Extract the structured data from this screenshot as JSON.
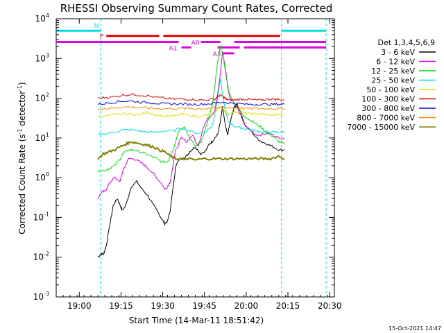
{
  "chart_data": {
    "type": "line",
    "title": "RHESSI Observing Summary Count Rates, Corrected",
    "xlabel": "Start Time (14-Mar-11 18:51:42)",
    "ylabel_main": "Corrected Count Rate (s",
    "ylabel_sup1": "-1",
    "ylabel_mid": " detector",
    "ylabel_sup2": "-1",
    "ylabel_end": ")",
    "yscale": "log",
    "ylim": [
      0.001,
      10000
    ],
    "xlim_minutes": [
      0,
      100
    ],
    "x_ticks": [
      {
        "min": 8.3,
        "label": "19:00"
      },
      {
        "min": 23.3,
        "label": "19:15"
      },
      {
        "min": 38.3,
        "label": "19:30"
      },
      {
        "min": 53.3,
        "label": "19:45"
      },
      {
        "min": 68.3,
        "label": "20:00"
      },
      {
        "min": 83.3,
        "label": "20:15"
      },
      {
        "min": 98.3,
        "label": "20:30"
      }
    ],
    "y_ticks": [
      {
        "exp": -3,
        "base": "10",
        "sup": "-3"
      },
      {
        "exp": -2,
        "base": "10",
        "sup": "-2"
      },
      {
        "exp": -1,
        "base": "10",
        "sup": "-1"
      },
      {
        "exp": 0,
        "base": "10",
        "sup": "0"
      },
      {
        "exp": 1,
        "base": "10",
        "sup": "1"
      },
      {
        "exp": 2,
        "base": "10",
        "sup": "2"
      },
      {
        "exp": 3,
        "base": "10",
        "sup": "3"
      },
      {
        "exp": 4,
        "base": "10",
        "sup": "4"
      }
    ],
    "legend_title": "Det 1,3,4,5,6,9",
    "series": [
      {
        "name": "3 - 6 keV",
        "color": "#000000",
        "x": [
          15,
          16,
          17,
          17.5,
          18,
          19.5,
          20.5,
          22,
          23,
          23.8,
          25,
          27,
          29,
          31,
          33,
          35,
          37,
          38,
          39,
          40,
          41,
          43,
          44.5,
          46,
          47.5,
          48.5,
          50,
          52,
          54,
          55,
          56,
          57,
          58,
          59,
          59.8,
          60.8,
          61.6,
          62.6,
          64,
          65,
          66,
          67,
          68,
          70,
          72,
          74,
          76,
          78,
          80,
          82
        ],
        "y": [
          0.01,
          0.012,
          0.012,
          0.015,
          0.02,
          0.08,
          0.2,
          0.3,
          0.2,
          0.15,
          0.2,
          0.6,
          0.8,
          0.5,
          0.35,
          0.2,
          0.12,
          0.09,
          0.07,
          0.08,
          0.15,
          2,
          3,
          3,
          4,
          5,
          6,
          4,
          5,
          7,
          8,
          10,
          12,
          25,
          60,
          20,
          12,
          25,
          60,
          70,
          50,
          30,
          20,
          15,
          10,
          8,
          7,
          6,
          5,
          5
        ]
      },
      {
        "name": "6 - 12 keV",
        "color": "#dd00dd",
        "x": [
          15,
          16,
          17,
          18,
          19.5,
          21,
          23,
          24,
          26,
          28,
          30,
          32,
          34,
          36,
          38,
          39,
          40,
          41,
          43,
          45,
          47,
          49,
          51,
          53,
          54.5,
          56,
          57,
          58,
          59,
          59.8,
          60.8,
          61.6,
          62.5,
          64,
          65,
          66,
          67,
          68,
          70,
          72,
          74,
          76,
          78,
          80,
          82
        ],
        "y": [
          0.3,
          0.4,
          0.45,
          0.5,
          0.8,
          1.0,
          0.8,
          1.5,
          3.0,
          3.0,
          2.5,
          2.0,
          1.5,
          1.0,
          0.7,
          0.5,
          0.6,
          0.8,
          5,
          10,
          8,
          12,
          6,
          20,
          30,
          40,
          50,
          120,
          400,
          1500,
          600,
          200,
          100,
          80,
          60,
          40,
          30,
          20,
          15,
          12,
          12,
          13,
          12,
          10,
          10
        ]
      },
      {
        "name": "12 - 25 keV",
        "color": "#00dd00",
        "x": [
          15,
          17,
          19,
          21,
          23,
          24,
          26,
          28,
          30,
          32,
          34,
          36,
          38,
          40,
          42,
          44,
          46,
          48,
          50,
          52,
          54,
          56,
          57,
          58,
          59,
          60,
          61,
          62,
          63,
          64,
          65,
          67,
          69,
          71,
          73,
          75,
          77,
          79,
          80,
          82
        ],
        "y": [
          1.5,
          1.5,
          1.7,
          2.0,
          3.0,
          4.0,
          5.0,
          5.0,
          4.5,
          4.0,
          3.5,
          3.0,
          2.5,
          2.5,
          5,
          15,
          20,
          10,
          6,
          8,
          20,
          60,
          200,
          800,
          2000,
          1200,
          400,
          150,
          100,
          80,
          60,
          40,
          30,
          25,
          20,
          15,
          12,
          10,
          8,
          7
        ]
      },
      {
        "name": "25 - 50 keV",
        "color": "#00dddd",
        "x": [
          15,
          18,
          21,
          24,
          27,
          30,
          33,
          36,
          39,
          42,
          45,
          48,
          51,
          54,
          56,
          57,
          58,
          59,
          60,
          61,
          62,
          64,
          66,
          68,
          70,
          72,
          74,
          76,
          78,
          80,
          82
        ],
        "y": [
          12,
          13,
          14,
          16,
          16,
          15,
          14,
          14,
          15,
          15,
          18,
          15,
          13,
          15,
          20,
          40,
          100,
          300,
          100,
          40,
          25,
          20,
          18,
          17,
          16,
          15,
          14,
          14,
          14,
          14,
          14
        ]
      },
      {
        "name": "50 - 100 keV",
        "color": "#dddd00",
        "x": [
          15,
          18,
          21,
          24,
          27,
          30,
          33,
          36,
          39,
          42,
          45,
          48,
          51,
          54,
          57,
          58,
          59,
          60,
          61,
          62,
          64,
          66,
          68,
          70,
          72,
          74,
          76,
          78,
          80,
          82
        ],
        "y": [
          35,
          36,
          38,
          40,
          40,
          38,
          45,
          38,
          35,
          35,
          40,
          36,
          35,
          37,
          40,
          55,
          60,
          55,
          45,
          40,
          45,
          45,
          42,
          40,
          40,
          40,
          38,
          38,
          38,
          38
        ]
      },
      {
        "name": "100 - 300 keV",
        "color": "#dd0000",
        "x": [
          15,
          18,
          21,
          24,
          27,
          30,
          33,
          36,
          39,
          42,
          45,
          48,
          51,
          54,
          57,
          58,
          59,
          60,
          61,
          62,
          64,
          66,
          68,
          70,
          72,
          74,
          76,
          78,
          80,
          82
        ],
        "y": [
          100,
          105,
          110,
          120,
          125,
          120,
          115,
          105,
          100,
          95,
          95,
          95,
          90,
          90,
          95,
          110,
          120,
          110,
          95,
          90,
          90,
          95,
          95,
          92,
          90,
          90,
          95,
          95,
          92,
          90
        ]
      },
      {
        "name": "300 - 800 keV",
        "color": "#0000dd",
        "x": [
          15,
          18,
          21,
          24,
          27,
          30,
          33,
          36,
          39,
          42,
          45,
          48,
          51,
          54,
          57,
          60,
          63,
          66,
          69,
          72,
          75,
          78,
          80,
          82
        ],
        "y": [
          70,
          75,
          80,
          85,
          85,
          80,
          78,
          75,
          72,
          72,
          72,
          70,
          70,
          72,
          75,
          80,
          75,
          72,
          70,
          70,
          70,
          70,
          70,
          70
        ]
      },
      {
        "name": "800 - 7000 keV",
        "color": "#ff8800",
        "x": [
          15,
          18,
          21,
          24,
          27,
          30,
          33,
          36,
          39,
          42,
          45,
          48,
          51,
          54,
          57,
          60,
          63,
          66,
          69,
          72,
          75,
          78,
          80,
          82
        ],
        "y": [
          55,
          55,
          57,
          60,
          60,
          58,
          57,
          55,
          55,
          55,
          55,
          55,
          55,
          55,
          57,
          60,
          58,
          56,
          55,
          55,
          55,
          55,
          55,
          55
        ]
      },
      {
        "name": "7000 - 15000 keV",
        "color": "#808000",
        "x": [
          15,
          17,
          19,
          21,
          23,
          25,
          27,
          29,
          31,
          33,
          35,
          37,
          39,
          41,
          43,
          45,
          47,
          50,
          53,
          56,
          59,
          62,
          65,
          68,
          71,
          74,
          77,
          80,
          82
        ],
        "y": [
          3.0,
          4.0,
          4.5,
          5.0,
          6.0,
          7.0,
          8.0,
          7.5,
          7.0,
          6.5,
          6.0,
          5.0,
          4.5,
          3.5,
          3.0,
          3.0,
          3.0,
          2.8,
          3.0,
          3.0,
          3.0,
          3.0,
          3.0,
          3.0,
          3.0,
          3.0,
          3.0,
          3.5,
          3.0
        ]
      }
    ],
    "state_bars": [
      {
        "label": "N",
        "color": "#00dddd",
        "y": 5000,
        "segments": [
          [
            0,
            16
          ],
          [
            81,
            97
          ]
        ]
      },
      {
        "label": "F",
        "color": "#dd0000",
        "y": 3700,
        "segments": [
          [
            18,
            37
          ],
          [
            38.5,
            80.5
          ]
        ]
      },
      {
        "label": "A0",
        "color": "#dd00dd",
        "y": 2600,
        "segments": [
          [
            0,
            44
          ],
          [
            52,
            59
          ],
          [
            64,
            97
          ]
        ]
      },
      {
        "label": "A1",
        "color": "#dd00dd",
        "y": 1900,
        "segments": [
          [
            45,
            48.5
          ],
          [
            58,
            66
          ],
          [
            67.5,
            97
          ]
        ]
      },
      {
        "label": "A3",
        "color": "#dd00dd",
        "y": 1350,
        "segments": [
          [
            60,
            64
          ]
        ]
      }
    ],
    "dot_segments": {
      "color": "#dd00dd",
      "y": 2600,
      "x": [
        70,
        73.5,
        77
      ]
    },
    "vertical_lines": {
      "color": "#00dddd",
      "x": [
        16,
        81,
        97
      ]
    },
    "timestamp": "15-Oct-2021 14:47"
  }
}
